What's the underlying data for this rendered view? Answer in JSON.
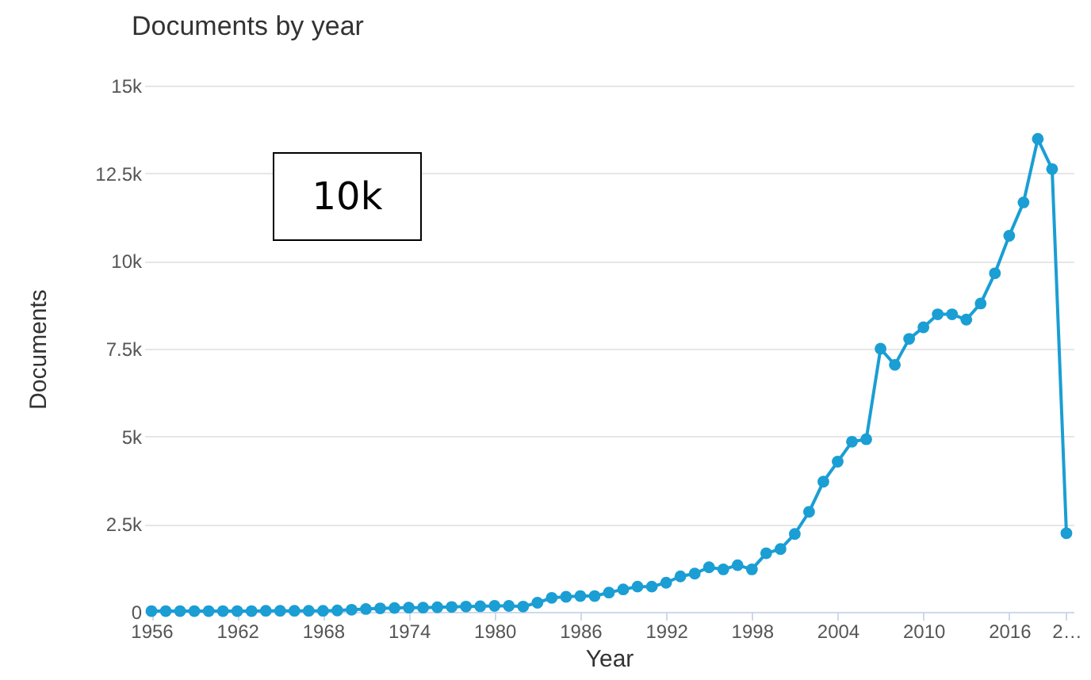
{
  "chart_data": {
    "type": "line",
    "title": "Documents by year",
    "xlabel": "Year",
    "ylabel": "Documents",
    "annotations": [
      "10k"
    ],
    "x": [
      1956,
      1957,
      1958,
      1959,
      1960,
      1961,
      1962,
      1963,
      1964,
      1965,
      1966,
      1967,
      1968,
      1969,
      1970,
      1971,
      1972,
      1973,
      1974,
      1975,
      1976,
      1977,
      1978,
      1979,
      1980,
      1981,
      1982,
      1983,
      1984,
      1985,
      1986,
      1987,
      1988,
      1989,
      1990,
      1991,
      1992,
      1993,
      1994,
      1995,
      1996,
      1997,
      1998,
      1999,
      2000,
      2001,
      2002,
      2003,
      2004,
      2005,
      2006,
      2007,
      2008,
      2009,
      2010,
      2011,
      2012,
      2013,
      2014,
      2015,
      2016,
      2017,
      2018,
      2019,
      2020
    ],
    "series": [
      {
        "color": "#1a9ed4",
        "values": [
          20,
          20,
          20,
          20,
          20,
          20,
          20,
          20,
          30,
          30,
          30,
          30,
          30,
          40,
          60,
          80,
          100,
          110,
          120,
          120,
          130,
          140,
          150,
          160,
          170,
          170,
          150,
          260,
          400,
          430,
          450,
          450,
          550,
          640,
          720,
          720,
          830,
          1010,
          1090,
          1270,
          1210,
          1330,
          1210,
          1670,
          1790,
          2220,
          2850,
          3710,
          4280,
          4850,
          4920,
          7500,
          7040,
          7780,
          8110,
          8480,
          8480,
          8330,
          8790,
          9650,
          10720,
          11670,
          13480,
          12620,
          2240
        ]
      }
    ],
    "xlim": [
      1955.5,
      2020.5
    ],
    "xticks": [
      1956,
      1962,
      1968,
      1974,
      1980,
      1986,
      1992,
      1998,
      2004,
      2010,
      2016,
      {
        "value": 2020,
        "label": "2…"
      }
    ],
    "ylim": [
      0,
      15000
    ],
    "yticks": [
      {
        "value": 0,
        "label": "0"
      },
      {
        "value": 2500,
        "label": "2.5k"
      },
      {
        "value": 5000,
        "label": "5k"
      },
      {
        "value": 7500,
        "label": "7.5k"
      },
      {
        "value": 10000,
        "label": "10k"
      },
      {
        "value": 12500,
        "label": "12.5k"
      },
      {
        "value": 15000,
        "label": "15k"
      }
    ],
    "grid": "y",
    "legend": false,
    "marker": "circle",
    "line_style": "solid"
  }
}
